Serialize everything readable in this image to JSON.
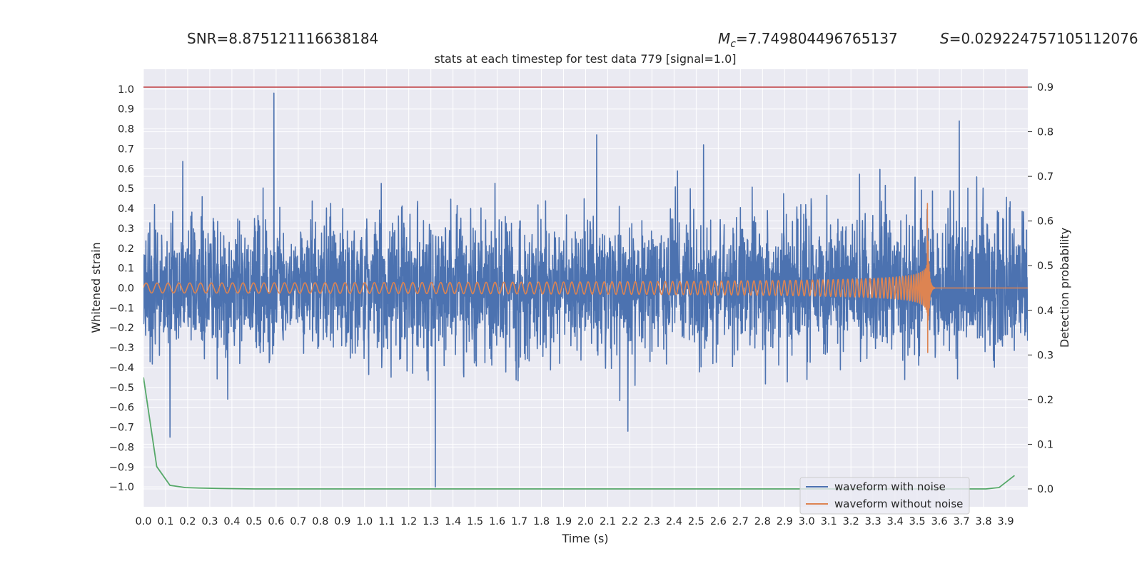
{
  "chart_data": {
    "type": "line",
    "title": "stats at each timestep for test data 779 [signal=1.0]",
    "annotations": {
      "snr": "SNR=8.875121116638184",
      "mc_symbol": "M",
      "mc_subscript": "c",
      "mc_value": "=7.749804496765137",
      "s_symbol": "S",
      "s_value": "=0.029224757105112076"
    },
    "xlabel": "Time (s)",
    "ylabel_left": "Whitened strain",
    "ylabel_right": "Detection probability",
    "xlim": [
      0.0,
      4.0
    ],
    "ylim_left": [
      -1.1,
      1.1
    ],
    "ylim_right": [
      -0.04,
      0.94
    ],
    "x_ticks": [
      "0.0",
      "0.1",
      "0.2",
      "0.3",
      "0.4",
      "0.5",
      "0.6",
      "0.7",
      "0.8",
      "0.9",
      "1.0",
      "1.1",
      "1.2",
      "1.3",
      "1.4",
      "1.5",
      "1.6",
      "1.7",
      "1.8",
      "1.9",
      "2.0",
      "2.1",
      "2.2",
      "2.3",
      "2.4",
      "2.5",
      "2.6",
      "2.7",
      "2.8",
      "2.9",
      "3.0",
      "3.1",
      "3.2",
      "3.3",
      "3.4",
      "3.5",
      "3.6",
      "3.7",
      "3.8",
      "3.9"
    ],
    "y_ticks_left": [
      "1.0",
      "0.9",
      "0.8",
      "0.7",
      "0.6",
      "0.5",
      "0.4",
      "0.3",
      "0.2",
      "0.1",
      "0.0",
      "−0.1",
      "−0.2",
      "−0.3",
      "−0.4",
      "−0.5",
      "−0.6",
      "−0.7",
      "−0.8",
      "−0.9",
      "−1.0"
    ],
    "y_ticks_right": [
      "0.9",
      "0.8",
      "0.7",
      "0.6",
      "0.5",
      "0.4",
      "0.3",
      "0.2",
      "0.1",
      "0.0"
    ],
    "threshold": {
      "value": 0.9,
      "axis": "right",
      "color": "#c44e52"
    },
    "series": [
      {
        "name": "waveform with noise",
        "axis": "left",
        "color": "#4c72b0",
        "kind": "noisy-strain",
        "t_range": [
          0.0,
          4.0
        ],
        "typical_amplitude": 0.3,
        "extreme_points": [
          [
            0.59,
            0.98
          ],
          [
            1.32,
            -1.0
          ],
          [
            3.69,
            0.84
          ],
          [
            0.12,
            -0.75
          ],
          [
            2.05,
            0.77
          ]
        ]
      },
      {
        "name": "waveform without noise",
        "axis": "left",
        "color": "#dd8452",
        "kind": "chirp",
        "t_range": [
          0.0,
          4.0
        ],
        "merger_time": 3.55,
        "start_amplitude": 0.025,
        "peak_amplitude": 0.22,
        "start_frequency_hz": 20
      },
      {
        "name": "detection probability",
        "axis": "right",
        "color": "#55a868",
        "x": [
          0.0,
          0.06,
          0.12,
          0.19,
          0.25,
          0.35,
          0.5,
          1.0,
          2.0,
          3.0,
          3.5,
          3.81,
          3.87,
          3.94
        ],
        "y": [
          0.25,
          0.05,
          0.008,
          0.003,
          0.002,
          0.001,
          0.0,
          0.0,
          0.0,
          0.0,
          0.0,
          0.0,
          0.003,
          0.03
        ]
      }
    ],
    "legend": {
      "position": "lower-right",
      "entries": [
        {
          "label": "waveform with noise",
          "color": "#4c72b0"
        },
        {
          "label": "waveform without noise",
          "color": "#dd8452"
        }
      ]
    },
    "colors": {
      "axes_background": "#eaeaf2",
      "grid": "#ffffff",
      "text": "#262626"
    }
  }
}
